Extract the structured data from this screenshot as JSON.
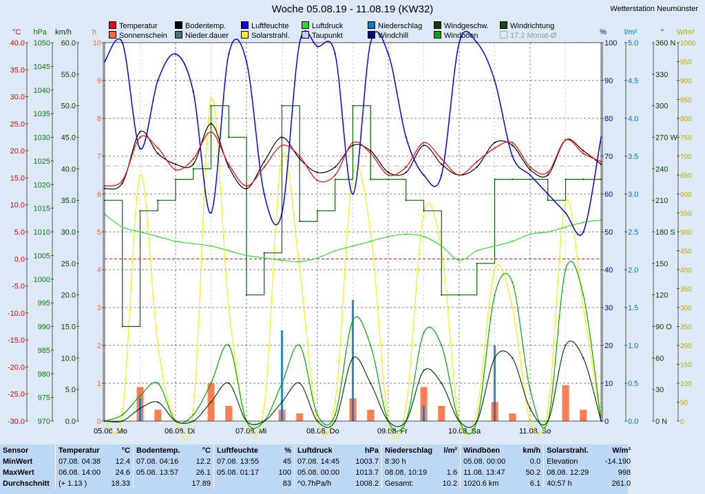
{
  "title": "Woche 05.08.19 - 11.08.19 (KW32)",
  "station": "Wetterstation Neumünster",
  "colors": {
    "temp": "#ff0000",
    "bodentemp": "#000000",
    "feuchte": "#0000ff",
    "druck": "#00cc00",
    "niederschlag": "#0078d7",
    "windgeschw": "#005500",
    "windrichtung": "#006600",
    "sonne": "#ff6633",
    "niederdauer": "#558888",
    "solar": "#ffff00",
    "taupunkt": "#c8c8e8",
    "windchill": "#000090",
    "windboeen": "#00aa00"
  },
  "legend": [
    {
      "id": "temp",
      "label": "Temperatur",
      "color": "#ff0000"
    },
    {
      "id": "bodentemp",
      "label": "Bodentemp.",
      "color": "#000000"
    },
    {
      "id": "feuchte",
      "label": "Luftfeuchte",
      "color": "#0000ff"
    },
    {
      "id": "druck",
      "label": "Luftdruck",
      "color": "#22dd22"
    },
    {
      "id": "niederschlag",
      "label": "Niederschlag",
      "color": "#0078d7"
    },
    {
      "id": "windgeschw",
      "label": "Windgeschw.",
      "color": "#004400"
    },
    {
      "id": "windrichtung",
      "label": "Windrichtung",
      "color": "#005500"
    },
    {
      "id": "sonne",
      "label": "Sonnenschein",
      "color": "#ff6633"
    },
    {
      "id": "niederdauer",
      "label": "Nieder.dauer",
      "color": "#447777"
    },
    {
      "id": "solar",
      "label": "Solarstrahl.",
      "color": "#ffee00"
    },
    {
      "id": "taupunkt",
      "label": "Taupunkt",
      "color": "#c8c8e8"
    },
    {
      "id": "windchill",
      "label": "Windchill",
      "color": "#000090"
    },
    {
      "id": "windboeen",
      "label": "Windböen",
      "color": "#00aa00"
    },
    {
      "id": "monat",
      "label": "17.2 Monat-Ø",
      "color": "#dde9f6",
      "dim": true
    }
  ],
  "chart_data": {
    "type": "line",
    "axes": {
      "temp_c": {
        "unit": "°C",
        "range": [
          -30,
          40
        ],
        "ticks": [
          "40.0",
          "35.0",
          "30.0",
          "25.0",
          "20.0",
          "15.0",
          "10.0",
          "5.0",
          "0.0",
          "-5.0",
          "-10.0",
          "-15.0",
          "-20.0",
          "-25.0",
          "-30.0"
        ]
      },
      "pressure_hpa": {
        "unit": "hPa",
        "range": [
          970,
          1050
        ],
        "ticks": [
          "1050",
          "1045",
          "1040",
          "1035",
          "1030",
          "1025",
          "1020",
          "1015",
          "1010",
          "1005",
          "1000",
          "995",
          "990",
          "985",
          "980",
          "975",
          "970"
        ]
      },
      "wind_kmh": {
        "unit": "km/h",
        "range": [
          0,
          60
        ],
        "ticks": [
          "60.0",
          "55.0",
          "50.0",
          "45.0",
          "40.0",
          "35.0",
          "30.0",
          "25.0",
          "20.0",
          "15.0",
          "10.0",
          "5.0",
          "0.0"
        ]
      },
      "hours_h": {
        "unit": "h",
        "range": [
          0,
          10
        ],
        "ticks": [
          "10",
          "9",
          "8",
          "7",
          "6",
          "5",
          "4",
          "3",
          "2",
          "1",
          "0"
        ]
      },
      "humidity_pct": {
        "unit": "%",
        "range": [
          0,
          100
        ],
        "ticks": [
          "100",
          "90",
          "80",
          "70",
          "60",
          "50",
          "40",
          "30",
          "20",
          "10",
          "0"
        ]
      },
      "rain_lm2": {
        "unit": "l/m²",
        "range": [
          0,
          5
        ],
        "ticks": [
          "5.0",
          "4.5",
          "4.0",
          "3.5",
          "3.0",
          "2.5",
          "2.0",
          "1.5",
          "1.0",
          "0.5",
          "0.0"
        ]
      },
      "direction_deg": {
        "unit": "°",
        "range": [
          0,
          360
        ],
        "ticks": [
          "360 N",
          "330",
          "300",
          "270 W",
          "240",
          "210",
          "180 S",
          "150",
          "120",
          "90 O",
          "60",
          "30",
          "0 N"
        ]
      },
      "solar_wm2": {
        "unit": "W/m²",
        "range": [
          0,
          1000
        ],
        "ticks": [
          "1000",
          "950",
          "900",
          "850",
          "800",
          "750",
          "700",
          "650",
          "600",
          "550",
          "500",
          "450",
          "400",
          "350",
          "300",
          "250",
          "200",
          "150",
          "100",
          "50",
          "0"
        ]
      }
    },
    "days": [
      "05.08.  Mo",
      "06.08.  Di",
      "07.08.  Mi",
      "08.08.  Do",
      "09.08.  Fr",
      "10.08.  Sa",
      "11.08.  So"
    ],
    "month_avg_temp": 17.2,
    "x_hours": [
      0,
      6,
      12,
      18,
      24,
      30,
      36,
      42,
      48,
      54,
      60,
      66,
      72,
      78,
      84,
      90,
      96,
      102,
      108,
      114,
      120,
      126,
      132,
      138,
      144,
      150,
      156,
      162,
      168
    ],
    "series": [
      {
        "name": "Temperatur",
        "axis": "temp_c",
        "values": [
          13.5,
          14.5,
          22.5,
          20.5,
          16.5,
          18.5,
          23.5,
          17.5,
          13.5,
          17,
          21,
          19,
          14.5,
          15.5,
          21.5,
          19.5,
          15.5,
          17,
          21.5,
          18.5,
          15.5,
          18,
          20.5,
          21.5,
          17,
          16,
          22,
          19.5,
          18
        ]
      },
      {
        "name": "Bodentemp.",
        "axis": "temp_c",
        "values": [
          13,
          14,
          23.5,
          19.5,
          17.5,
          17.5,
          25,
          17,
          13,
          18,
          22.5,
          18.5,
          16,
          17,
          21,
          20,
          16,
          16,
          21,
          17.5,
          15.5,
          17,
          21.5,
          21,
          16.5,
          15.5,
          22,
          20,
          17.5
        ]
      },
      {
        "name": "Luftfeuchte",
        "axis": "humidity_pct",
        "values": [
          95,
          100,
          72,
          90,
          97,
          87,
          55,
          97,
          95,
          60,
          55,
          100,
          99,
          97,
          60,
          100,
          97,
          75,
          65,
          65,
          100,
          100,
          90,
          70,
          65,
          60,
          55,
          50,
          75
        ]
      },
      {
        "name": "Luftdruck",
        "axis": "pressure_hpa",
        "values": [
          1013.7,
          1011,
          1010,
          1009,
          1008,
          1007.5,
          1007,
          1006,
          1005,
          1004.5,
          1004,
          1003.7,
          1004.5,
          1006,
          1007,
          1008,
          1009,
          1009.5,
          1009,
          1007,
          1004,
          1006,
          1007,
          1008,
          1009.5,
          1010,
          1011,
          1012,
          1012.5
        ]
      },
      {
        "name": "Windgeschw.",
        "axis": "wind_kmh",
        "values": [
          0,
          0,
          2,
          3,
          0,
          0,
          3,
          6,
          0,
          0,
          3,
          6,
          0,
          0,
          10,
          6,
          0,
          0,
          8,
          6,
          0,
          0,
          10,
          10,
          2,
          0,
          12,
          10,
          0
        ]
      },
      {
        "name": "Windböen",
        "axis": "wind_kmh",
        "values": [
          0,
          1,
          4,
          6,
          0,
          1,
          6,
          12,
          0,
          0,
          6,
          12,
          1,
          1,
          16,
          12,
          0,
          0,
          14,
          12,
          0,
          0,
          20,
          22,
          5,
          0,
          24,
          20,
          0
        ]
      },
      {
        "name": "Windrichtung",
        "axis": "direction_deg",
        "values": [
          210,
          90,
          200,
          210,
          230,
          240,
          300,
          270,
          120,
          160,
          300,
          190,
          200,
          230,
          300,
          230,
          230,
          210,
          200,
          120,
          120,
          150,
          230,
          230,
          230,
          210,
          230,
          230,
          230
        ]
      },
      {
        "name": "Solarstrahl.",
        "axis": "solar_wm2",
        "values": [
          0,
          20,
          650,
          200,
          0,
          30,
          850,
          300,
          0,
          40,
          700,
          400,
          0,
          50,
          650,
          500,
          0,
          40,
          550,
          450,
          0,
          30,
          400,
          300,
          0,
          30,
          580,
          300,
          0
        ]
      },
      {
        "name": "Sonnenschein",
        "axis": "hours_h",
        "values": [
          0,
          0,
          0.9,
          0.3,
          0,
          0,
          1,
          0.4,
          0,
          0,
          0.3,
          0.2,
          0,
          0,
          0.6,
          0.3,
          0,
          0,
          0.9,
          0.4,
          0,
          0,
          0.5,
          0.2,
          0,
          0,
          0.95,
          0.3,
          0
        ]
      },
      {
        "name": "Niederschlag",
        "axis": "rain_lm2",
        "values": [
          0,
          0,
          0.3,
          0,
          0,
          0,
          0,
          0,
          0,
          0,
          1.2,
          0,
          0,
          0,
          1.6,
          0,
          0,
          0,
          0.2,
          0,
          0,
          0,
          1.0,
          0,
          0,
          0,
          0,
          0,
          0
        ]
      }
    ]
  },
  "stats": {
    "headers": [
      {
        "label": "Sensor",
        "unit": ""
      },
      {
        "label": "Temperatur",
        "unit": "°C"
      },
      {
        "label": "Bodentemp.",
        "unit": "°C"
      },
      {
        "label": "Luftfeuchte",
        "unit": "%"
      },
      {
        "label": "Luftdruck",
        "unit": "hPa"
      },
      {
        "label": "Niederschlag",
        "unit": "l/m²"
      },
      {
        "label": "Windböen",
        "unit": "km/h"
      },
      {
        "label": "Solarstrahl.",
        "unit": "W/m²"
      }
    ],
    "rows": [
      {
        "label": "MinWert",
        "cells": [
          [
            "07.08.  04:38",
            "12.4"
          ],
          [
            "07.08.  04:16",
            "12.2"
          ],
          [
            "07.08.  13:55",
            "45"
          ],
          [
            "07.08.  14:45",
            "1003.7"
          ],
          [
            "8:30 h",
            ""
          ],
          [
            "05.08.  00:00",
            "0.0"
          ],
          [
            "Elevation",
            "-14.190"
          ]
        ]
      },
      {
        "label": "MaxWert",
        "cells": [
          [
            "06.08.  14:00",
            "24.6"
          ],
          [
            "05.08.  13:57",
            "26.1"
          ],
          [
            "05.08.  01:17",
            "100"
          ],
          [
            "05.08.  00:00",
            "1013.7"
          ],
          [
            "08.08.  10:19",
            "1.6"
          ],
          [
            "11.08.  13:47",
            "50.2"
          ],
          [
            "08.08.  12:29",
            "998"
          ]
        ]
      },
      {
        "label": "Durchschnitt",
        "cells": [
          [
            "(+ 1.13 )",
            "18.33"
          ],
          [
            "",
            "17.89"
          ],
          [
            "",
            "83"
          ],
          [
            "^0.7hPa/h",
            "1008.2"
          ],
          [
            "Gesamt:",
            "10.2"
          ],
          [
            "1020.6 km",
            "6.1"
          ],
          [
            "40:57 h",
            "261.0"
          ]
        ]
      }
    ]
  }
}
